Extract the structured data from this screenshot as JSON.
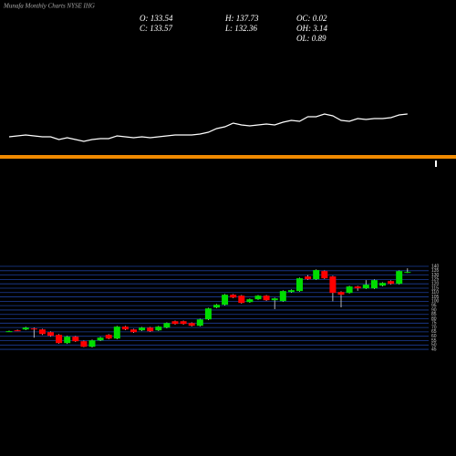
{
  "chart_data": [
    {
      "type": "candlestick",
      "title": "Munafa Monthly Charts NYSE IHG",
      "readouts": [
        "O: 133.54",
        "H: 137.73",
        "OC: 0.02",
        "C: 133.57",
        "L: 132.36",
        "OH: 3.14",
        "OL: 0.89"
      ],
      "up_color": "#00dd00",
      "down_color": "#ff0000",
      "grid": true,
      "grid_color": "#1d3f9a",
      "ylim": [
        43,
        140
      ],
      "yticks": [
        45,
        50,
        55,
        60,
        65,
        70,
        75,
        80,
        85,
        90,
        95,
        100,
        105,
        110,
        115,
        120,
        125,
        130,
        135,
        140
      ],
      "open": [
        65.7,
        66.8,
        67.8,
        68.9,
        67.8,
        64.7,
        61.6,
        52.2,
        59.5,
        54.3,
        48.0,
        55.3,
        61.6,
        57.4,
        71.0,
        67.8,
        66.8,
        69.9,
        66.8,
        69.9,
        77.2,
        77.2,
        75.1,
        72.0,
        79.3,
        92.9,
        96.0,
        107.5,
        106.4,
        99.1,
        102.3,
        106.4,
        101.2,
        100.2,
        110.6,
        111.7,
        128.4,
        125.2,
        134.6,
        128.4,
        110.6,
        109.6,
        116.9,
        114.8,
        114.8,
        117.9,
        123.1,
        120.0,
        133.54
      ],
      "high": [
        66.5,
        67.6,
        70.8,
        69.9,
        68.6,
        65.5,
        62.4,
        60.5,
        60.3,
        55.1,
        56.2,
        59.3,
        62.4,
        71.8,
        71.8,
        68.6,
        70.7,
        70.7,
        71.8,
        75.9,
        78.0,
        78.0,
        75.9,
        80.1,
        92.6,
        96.8,
        108.3,
        108.3,
        107.2,
        103.1,
        107.2,
        107.2,
        104.1,
        112.5,
        113.5,
        127.1,
        130.0,
        136.5,
        135.4,
        129.2,
        111.4,
        117.7,
        117.7,
        124.2,
        125.0,
        121.8,
        123.9,
        135.4,
        137.73
      ],
      "low": [
        65.0,
        65.9,
        67.0,
        58.4,
        61.5,
        59.5,
        51.5,
        51.2,
        53.5,
        47.5,
        47.2,
        54.5,
        56.6,
        56.6,
        67.0,
        63.9,
        66.0,
        64.9,
        66.0,
        69.1,
        73.3,
        73.3,
        71.2,
        71.2,
        78.5,
        92.1,
        95.2,
        103.5,
        97.3,
        98.3,
        101.5,
        100.4,
        91.0,
        99.4,
        109.8,
        110.9,
        124.4,
        124.4,
        125.5,
        100.0,
        93.0,
        108.8,
        112.0,
        114.0,
        114.0,
        117.1,
        119.2,
        119.2,
        132.36
      ],
      "close": [
        65.8,
        66.6,
        69.9,
        67.8,
        62.6,
        60.5,
        52.2,
        59.5,
        54.3,
        48.0,
        55.3,
        58.4,
        57.4,
        71.0,
        67.8,
        64.7,
        69.9,
        65.7,
        71.0,
        75.1,
        74.1,
        74.1,
        72.0,
        79.3,
        91.8,
        96.0,
        107.5,
        104.3,
        98.1,
        102.3,
        106.4,
        101.2,
        103.3,
        111.7,
        112.7,
        126.3,
        125.2,
        135.7,
        126.3,
        109.6,
        107.5,
        116.9,
        114.8,
        119.0,
        124.2,
        121.0,
        120.0,
        134.6,
        133.57
      ]
    },
    {
      "type": "line",
      "color": "#ffffff",
      "ylim": [
        0,
        100
      ],
      "values": [
        20,
        22,
        24,
        22,
        20,
        20,
        14,
        18,
        14,
        10,
        14,
        16,
        16,
        22,
        20,
        18,
        20,
        18,
        20,
        22,
        24,
        24,
        24,
        26,
        30,
        38,
        42,
        50,
        46,
        44,
        46,
        48,
        46,
        52,
        56,
        54,
        64,
        64,
        70,
        66,
        56,
        54,
        60,
        58,
        60,
        60,
        62,
        68,
        70
      ]
    }
  ]
}
